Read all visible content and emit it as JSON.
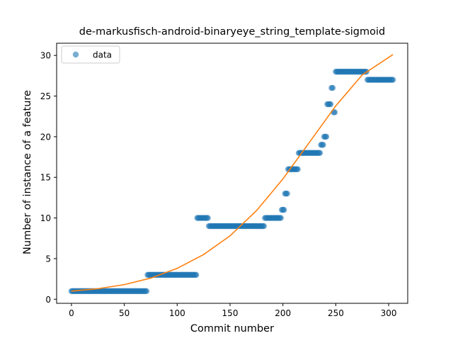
{
  "chart_data": {
    "type": "scatter",
    "title": "de-markusfisch-android-binaryeye_string_template-sigmoid",
    "xlabel": "Commit number",
    "ylabel": "Number of instance of a feature",
    "xlim": [
      -14,
      318
    ],
    "ylim": [
      -0.5,
      31.5
    ],
    "xticks": [
      0,
      50,
      100,
      150,
      200,
      250,
      300
    ],
    "yticks": [
      0,
      5,
      10,
      15,
      20,
      25,
      30
    ],
    "legend": {
      "position": "top-left",
      "entries": [
        {
          "label": "data",
          "color": "#1f77b4"
        }
      ]
    },
    "grid": false,
    "colors": {
      "data": "#1f77b4",
      "fit": "#ff7f0e"
    },
    "series": [
      {
        "name": "data",
        "kind": "points",
        "segments": [
          {
            "x_start": 0,
            "x_end": 71,
            "y": 1
          },
          {
            "x_start": 72,
            "x_end": 118,
            "y": 3
          },
          {
            "x_start": 119,
            "x_end": 129,
            "y": 10
          },
          {
            "x_start": 130,
            "x_end": 182,
            "y": 9
          },
          {
            "x_start": 183,
            "x_end": 198,
            "y": 10
          },
          {
            "x_start": 199,
            "x_end": 201,
            "y": 11
          },
          {
            "x_start": 202,
            "x_end": 204,
            "y": 13
          },
          {
            "x_start": 205,
            "x_end": 214,
            "y": 16
          },
          {
            "x_start": 215,
            "x_end": 235,
            "y": 18
          },
          {
            "x_start": 236,
            "x_end": 238,
            "y": 19
          },
          {
            "x_start": 239,
            "x_end": 241,
            "y": 20
          },
          {
            "x_start": 242,
            "x_end": 245,
            "y": 24
          },
          {
            "x_start": 246,
            "x_end": 247,
            "y": 26
          },
          {
            "x_start": 248,
            "x_end": 249,
            "y": 23
          },
          {
            "x_start": 250,
            "x_end": 279,
            "y": 28
          },
          {
            "x_start": 280,
            "x_end": 304,
            "y": 27
          }
        ]
      },
      {
        "name": "",
        "kind": "line",
        "x": [
          0,
          25,
          50,
          75,
          100,
          125,
          150,
          175,
          200,
          225,
          250,
          275,
          304
        ],
        "y": [
          1.0,
          1.3,
          1.8,
          2.6,
          3.8,
          5.5,
          7.8,
          10.9,
          14.8,
          19.3,
          23.8,
          27.6,
          30.1
        ]
      }
    ]
  }
}
